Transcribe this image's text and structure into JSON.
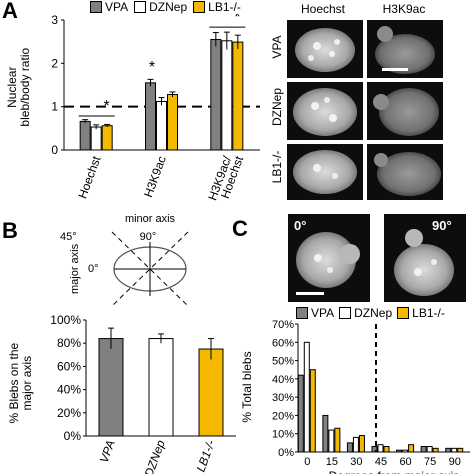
{
  "colors": {
    "vpa": "#808080",
    "dznep": "#ffffff",
    "lb1": "#f5b800"
  },
  "panel_a": {
    "letter": "A",
    "legend": [
      "VPA",
      "DZNep",
      "LB1-/-"
    ],
    "ylabel": "Nuclear bleb/body ratio",
    "sig": [
      "*",
      "*",
      "*"
    ],
    "micro_cols": [
      "Hoechst",
      "H3K9ac"
    ],
    "micro_rows": [
      "VPA",
      "DZNep",
      "LB1-/-"
    ]
  },
  "panel_b": {
    "letter": "B",
    "diagram": {
      "minor": "minor axis",
      "major": "major axis",
      "a45": "45°",
      "a90": "90°",
      "a0": "0°"
    },
    "ylabel": "% Blebs on the major axis"
  },
  "panel_c": {
    "letter": "C",
    "img_labels": [
      "0°",
      "90°"
    ],
    "legend": [
      "VPA",
      "DZNep",
      "LB1-/-"
    ],
    "ylabel": "% Total blebs",
    "xlabel": "Degrees from major axis"
  },
  "chart_data": [
    {
      "type": "bar",
      "categories": [
        "Hoechst",
        "H3K9ac",
        "H3K9ac/ Hoechst"
      ],
      "series": [
        {
          "name": "VPA",
          "values": [
            0.66,
            1.55,
            2.55
          ]
        },
        {
          "name": "DZNep",
          "values": [
            0.53,
            1.12,
            2.52
          ]
        },
        {
          "name": "LB1-/-",
          "values": [
            0.56,
            1.28,
            2.49
          ]
        }
      ],
      "errors": [
        [
          0.04,
          0.08,
          0.16
        ],
        [
          0.05,
          0.09,
          0.2
        ],
        [
          0.03,
          0.06,
          0.16
        ]
      ],
      "ylim": [
        0,
        3
      ],
      "yticks": [
        "0",
        "1",
        "2",
        "3"
      ],
      "reference_line": 1
    },
    {
      "type": "bar",
      "categories": [
        "VPA",
        "DZNep",
        "LB1-/-"
      ],
      "values": [
        84,
        84,
        75
      ],
      "errors": [
        9,
        4,
        9
      ],
      "ylim": [
        0,
        100
      ],
      "yticks": [
        "0%",
        "20%",
        "40%",
        "60%",
        "80%",
        "100%"
      ]
    },
    {
      "type": "bar",
      "categories": [
        "0",
        "15",
        "30",
        "45",
        "60",
        "75",
        "90"
      ],
      "series": [
        {
          "name": "VPA",
          "values": [
            42,
            20,
            5,
            3,
            1,
            3,
            2
          ]
        },
        {
          "name": "DZNep",
          "values": [
            60,
            12,
            8,
            4,
            1,
            3,
            2
          ]
        },
        {
          "name": "LB1-/-",
          "values": [
            45,
            13,
            9,
            3,
            4,
            2,
            2
          ]
        }
      ],
      "ylim": [
        0,
        70
      ],
      "yticks": [
        "0%",
        "10%",
        "20%",
        "30%",
        "40%",
        "50%",
        "60%",
        "70%"
      ],
      "threshold": 45
    }
  ]
}
